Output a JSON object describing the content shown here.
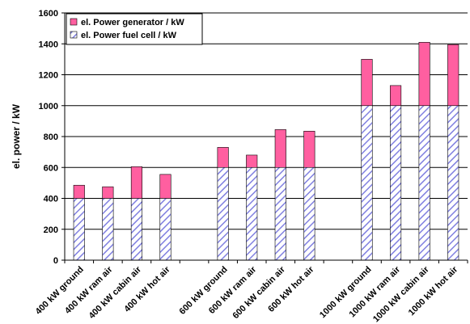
{
  "chart_data": {
    "type": "bar",
    "stacked": true,
    "categories": [
      "400 kW ground",
      "400 kW ram air",
      "400 kW cabin air",
      "400 kW hot air",
      "",
      "600 kW ground",
      "600 kW ram air",
      "600 kW cabin air",
      "600 kW hot air",
      "",
      "1000 kW ground",
      "1000 kW ram air",
      "1000 kW cabin air",
      "1000 kW hot air"
    ],
    "series": [
      {
        "name": "el. Power fuel cell / kW",
        "color": "#8080e0",
        "pattern": "diagonal-hatch",
        "values": [
          400,
          400,
          400,
          400,
          null,
          600,
          600,
          600,
          600,
          null,
          1000,
          1000,
          1000,
          1000
        ]
      },
      {
        "name": "el. Power generator / kW",
        "color": "#ff5fa0",
        "pattern": "solid",
        "values": [
          85,
          75,
          205,
          155,
          null,
          130,
          80,
          245,
          235,
          null,
          300,
          130,
          410,
          395
        ]
      }
    ],
    "xlabel": "",
    "ylabel": "el. power / kW",
    "ylim": [
      0,
      1600
    ],
    "yticks": [
      0,
      200,
      400,
      600,
      800,
      1000,
      1200,
      1400,
      1600
    ],
    "grid": true,
    "legend_position": "top-left"
  }
}
